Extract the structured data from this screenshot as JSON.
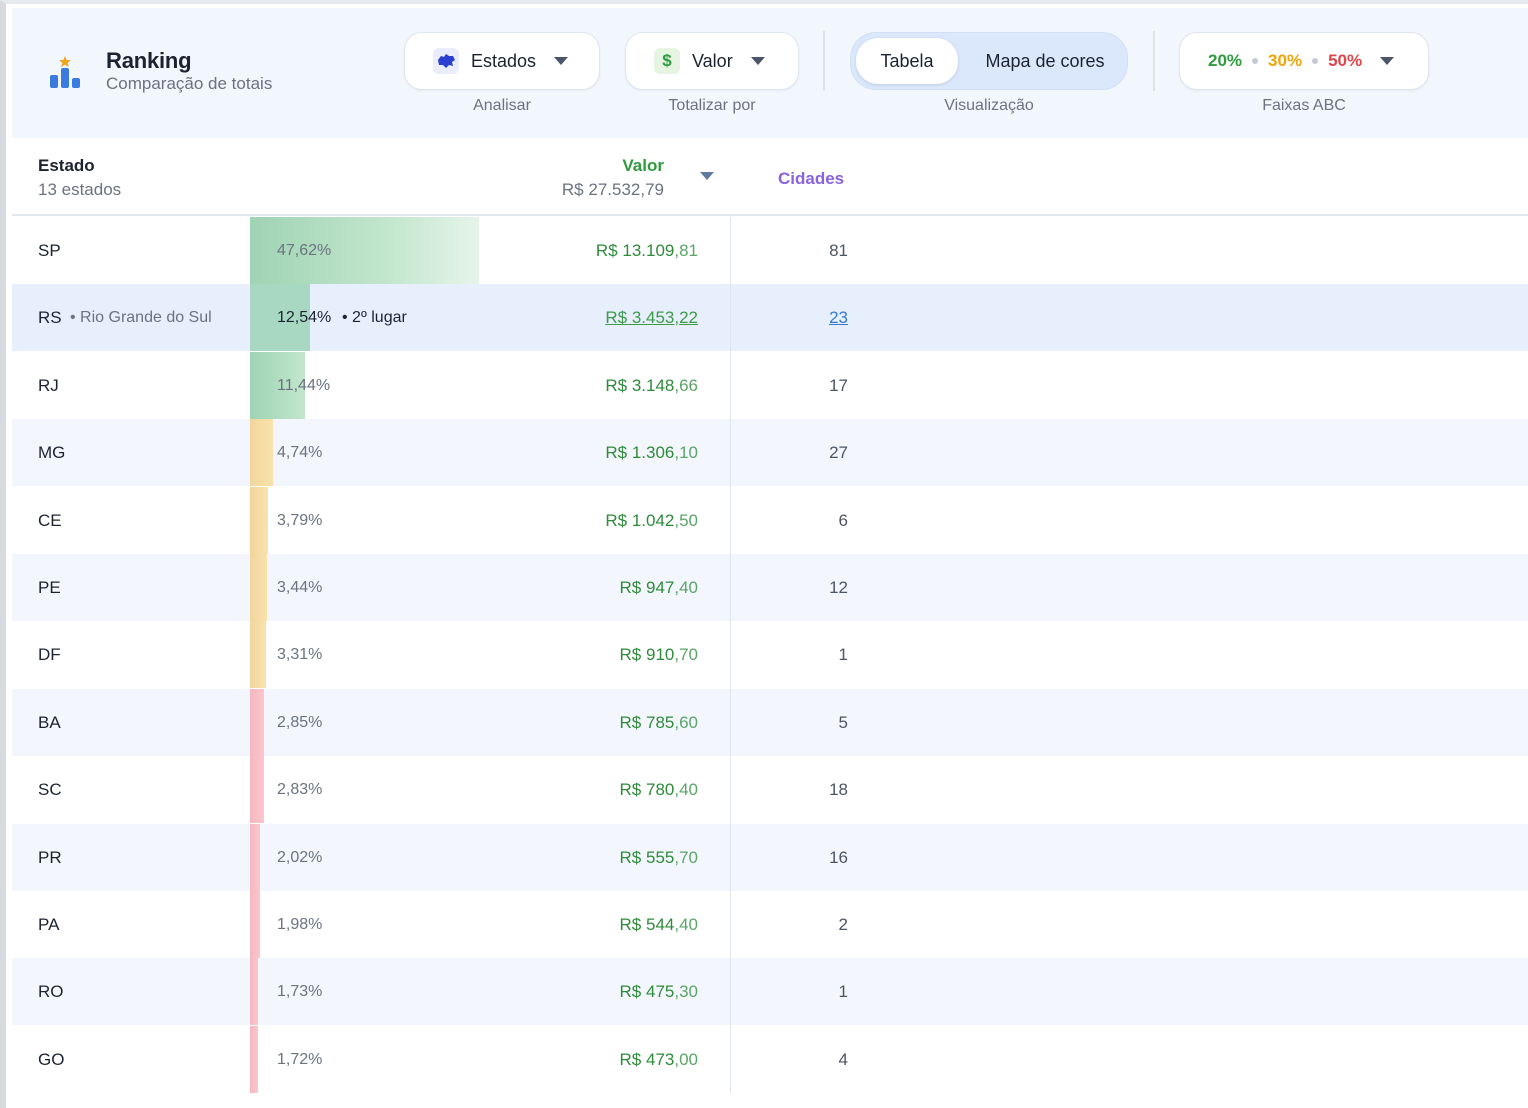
{
  "header": {
    "title": "Ranking",
    "subtitle": "Comparação de totais",
    "analisar": {
      "value": "Estados",
      "caption": "Analisar",
      "icon": "map-icon"
    },
    "totalizar": {
      "value": "Valor",
      "caption": "Totalizar por",
      "icon": "dollar-icon"
    },
    "visualizacao": {
      "caption": "Visualização",
      "active": "Tabela",
      "other": "Mapa de cores"
    },
    "faixas": {
      "caption": "Faixas ABC",
      "a": "20%",
      "b": "30%",
      "c": "50%"
    }
  },
  "colors": {
    "green": "#2e9b3d",
    "orange": "#f0a30a",
    "red": "#e0454d",
    "purple": "#8a62e0",
    "bar_a": "#b9e0c4",
    "bar_b": "#f7dea6",
    "bar_c": "#f8c3c8"
  },
  "table": {
    "col_estado": "Estado",
    "count_label": "13 estados",
    "col_valor": "Valor",
    "total": "R$ 27.532,79",
    "col_cidades": "Cidades",
    "rows": [
      {
        "uf": "SP",
        "name": "",
        "pct": "47,62%",
        "share": 0.4762,
        "band": "a",
        "rank": "",
        "val_main": "R$ 13.109",
        "val_cents": ",81",
        "cidades": "81",
        "alt": false,
        "sel": false
      },
      {
        "uf": "RS",
        "name": "• Rio Grande do Sul",
        "pct": "12,54%",
        "share": 0.1254,
        "band": "a",
        "rank": "• 2º lugar",
        "val_main": "R$ 3.453",
        "val_cents": ",22",
        "cidades": "23",
        "alt": false,
        "sel": true
      },
      {
        "uf": "RJ",
        "name": "",
        "pct": "11,44%",
        "share": 0.1144,
        "band": "a",
        "rank": "",
        "val_main": "R$ 3.148",
        "val_cents": ",66",
        "cidades": "17",
        "alt": false,
        "sel": false
      },
      {
        "uf": "MG",
        "name": "",
        "pct": "4,74%",
        "share": 0.0474,
        "band": "b",
        "rank": "",
        "val_main": "R$ 1.306",
        "val_cents": ",10",
        "cidades": "27",
        "alt": true,
        "sel": false
      },
      {
        "uf": "CE",
        "name": "",
        "pct": "3,79%",
        "share": 0.0379,
        "band": "b",
        "rank": "",
        "val_main": "R$ 1.042",
        "val_cents": ",50",
        "cidades": "6",
        "alt": false,
        "sel": false
      },
      {
        "uf": "PE",
        "name": "",
        "pct": "3,44%",
        "share": 0.0344,
        "band": "b",
        "rank": "",
        "val_main": "R$ 947",
        "val_cents": ",40",
        "cidades": "12",
        "alt": true,
        "sel": false
      },
      {
        "uf": "DF",
        "name": "",
        "pct": "3,31%",
        "share": 0.0331,
        "band": "b",
        "rank": "",
        "val_main": "R$ 910",
        "val_cents": ",70",
        "cidades": "1",
        "alt": false,
        "sel": false
      },
      {
        "uf": "BA",
        "name": "",
        "pct": "2,85%",
        "share": 0.0285,
        "band": "c",
        "rank": "",
        "val_main": "R$ 785",
        "val_cents": ",60",
        "cidades": "5",
        "alt": true,
        "sel": false
      },
      {
        "uf": "SC",
        "name": "",
        "pct": "2,83%",
        "share": 0.0283,
        "band": "c",
        "rank": "",
        "val_main": "R$ 780",
        "val_cents": ",40",
        "cidades": "18",
        "alt": false,
        "sel": false
      },
      {
        "uf": "PR",
        "name": "",
        "pct": "2,02%",
        "share": 0.0202,
        "band": "c",
        "rank": "",
        "val_main": "R$ 555",
        "val_cents": ",70",
        "cidades": "16",
        "alt": true,
        "sel": false
      },
      {
        "uf": "PA",
        "name": "",
        "pct": "1,98%",
        "share": 0.0198,
        "band": "c",
        "rank": "",
        "val_main": "R$ 544",
        "val_cents": ",40",
        "cidades": "2",
        "alt": false,
        "sel": false
      },
      {
        "uf": "RO",
        "name": "",
        "pct": "1,73%",
        "share": 0.0173,
        "band": "c",
        "rank": "",
        "val_main": "R$ 475",
        "val_cents": ",30",
        "cidades": "1",
        "alt": true,
        "sel": false
      },
      {
        "uf": "GO",
        "name": "",
        "pct": "1,72%",
        "share": 0.0172,
        "band": "c",
        "rank": "",
        "val_main": "R$ 473",
        "val_cents": ",00",
        "cidades": "4",
        "alt": false,
        "sel": false
      }
    ]
  }
}
